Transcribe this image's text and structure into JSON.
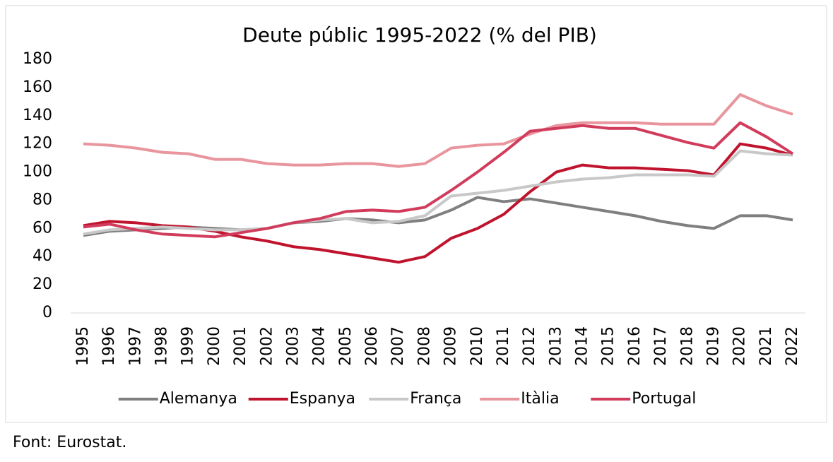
{
  "chart_data": {
    "type": "line",
    "title": "Deute públic 1995-2022 (% del PIB)",
    "categories": [
      "1995",
      "1996",
      "1997",
      "1998",
      "1999",
      "2000",
      "2001",
      "2002",
      "2003",
      "2004",
      "2005",
      "2006",
      "2007",
      "2008",
      "2009",
      "2010",
      "2011",
      "2012",
      "2013",
      "2014",
      "2015",
      "2016",
      "2017",
      "2018",
      "2019",
      "2020",
      "2021",
      "2022"
    ],
    "series": [
      {
        "name": "Alemanya",
        "color": "#7f7f7f",
        "values": [
          55,
          58,
          59,
          60,
          61,
          60,
          59,
          60,
          64,
          65,
          67,
          66,
          64,
          66,
          73,
          82,
          79,
          81,
          78,
          75,
          72,
          69,
          65,
          62,
          60,
          69,
          69,
          66
        ]
      },
      {
        "name": "Espanya",
        "color": "#c0142e",
        "values": [
          62,
          65,
          64,
          62,
          61,
          58,
          54,
          51,
          47,
          45,
          42,
          39,
          36,
          40,
          53,
          60,
          70,
          86,
          100,
          105,
          103,
          103,
          102,
          101,
          98,
          120,
          117,
          112
        ]
      },
      {
        "name": "França",
        "color": "#c8c8c8",
        "values": [
          56,
          59,
          60,
          61,
          60,
          59,
          59,
          60,
          64,
          66,
          67,
          64,
          65,
          69,
          83,
          85,
          87,
          90,
          93,
          95,
          96,
          98,
          98,
          98,
          97,
          115,
          113,
          112
        ]
      },
      {
        "name": "Itàlia",
        "color": "#e8959e",
        "values": [
          120,
          119,
          117,
          114,
          113,
          109,
          109,
          106,
          105,
          105,
          106,
          106,
          104,
          106,
          117,
          119,
          120,
          127,
          133,
          135,
          135,
          135,
          134,
          134,
          134,
          155,
          147,
          141
        ]
      },
      {
        "name": "Portugal",
        "color": "#d23c5c",
        "values": [
          61,
          63,
          59,
          56,
          55,
          54,
          57,
          60,
          64,
          67,
          72,
          73,
          72,
          75,
          87,
          100,
          114,
          129,
          131,
          133,
          131,
          131,
          126,
          121,
          117,
          135,
          125,
          113
        ]
      }
    ],
    "ylim": [
      0,
      180
    ],
    "yticks": [
      0,
      20,
      40,
      60,
      80,
      100,
      120,
      140,
      160,
      180
    ],
    "grid": false,
    "legend": "bottom"
  },
  "source": "Font: Eurostat."
}
